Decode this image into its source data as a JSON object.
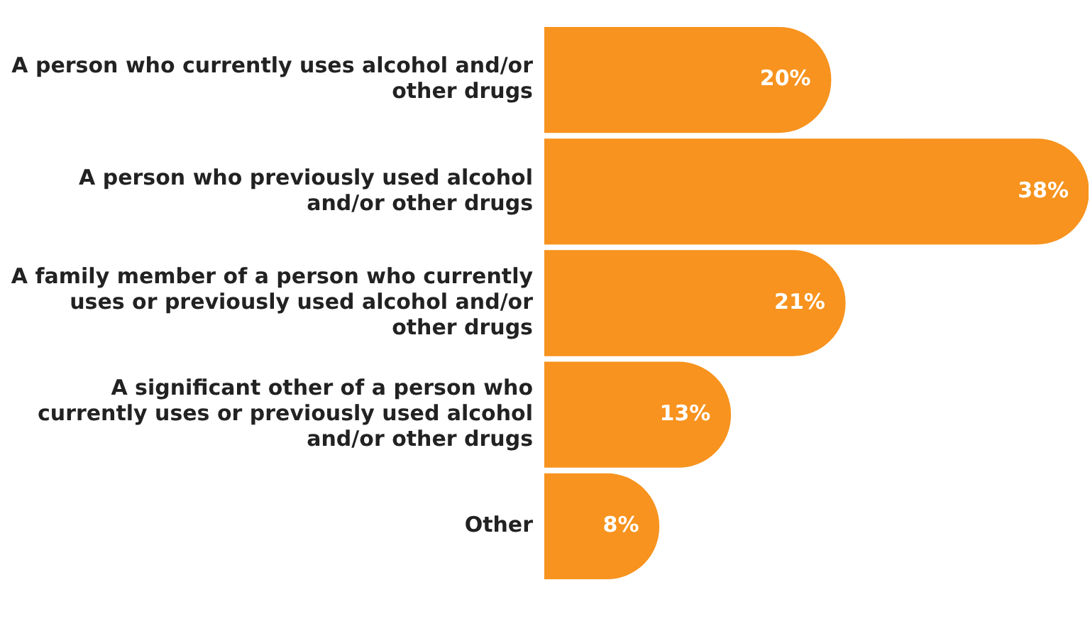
{
  "chart_data": {
    "type": "bar",
    "orientation": "horizontal",
    "categories": [
      "A person who currently uses alcohol and/or other drugs",
      "A person who previously used alcohol and/or other drugs",
      "A family member of a person who currently uses or previously used alcohol and/or other drugs",
      "A significant other of a person who currently uses or previously used alcohol and/or other drugs",
      "Other"
    ],
    "values": [
      20,
      38,
      21,
      13,
      8
    ],
    "value_labels": [
      "20%",
      "38%",
      "21%",
      "13%",
      "8%"
    ],
    "color": "#f7931e",
    "tick_labels": "y",
    "grid": false,
    "legend": false
  }
}
